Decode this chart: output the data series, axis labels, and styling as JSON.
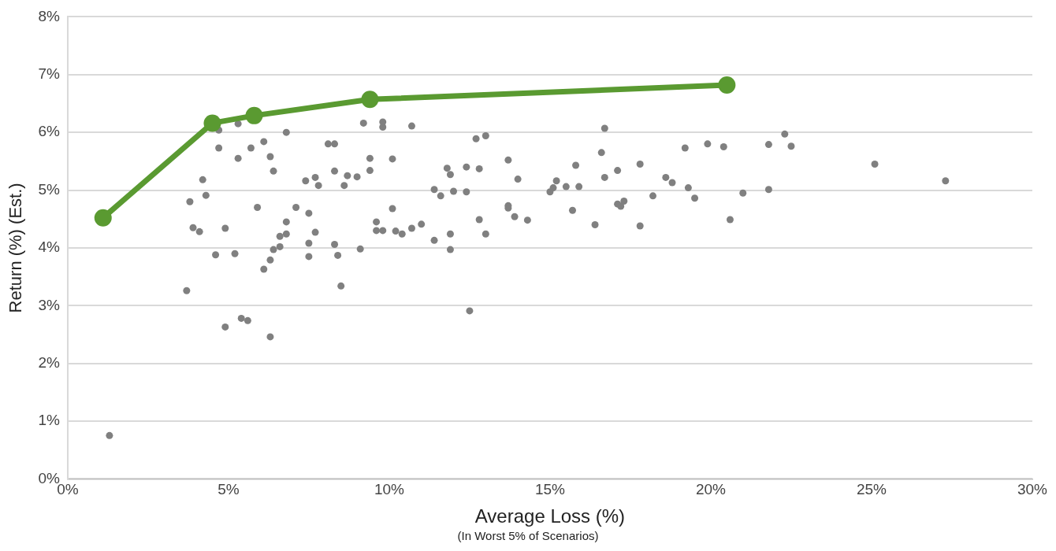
{
  "chart_data": {
    "type": "scatter",
    "xlabel": "Average Loss (%)",
    "ylabel": "Return (%) (Est.)",
    "annotations": [
      "(In Worst 5% of Scenarios)"
    ],
    "xlim": [
      0,
      30
    ],
    "ylim": [
      0,
      8
    ],
    "xticks": [
      {
        "value": 0,
        "label": "0%"
      },
      {
        "value": 5,
        "label": "5%"
      },
      {
        "value": 10,
        "label": "10%"
      },
      {
        "value": 15,
        "label": "15%"
      },
      {
        "value": 20,
        "label": "20%"
      },
      {
        "value": 25,
        "label": "25%"
      },
      {
        "value": 30,
        "label": "30%"
      }
    ],
    "yticks": [
      {
        "value": 0,
        "label": "0%"
      },
      {
        "value": 1,
        "label": "1%"
      },
      {
        "value": 2,
        "label": "2%"
      },
      {
        "value": 3,
        "label": "3%"
      },
      {
        "value": 4,
        "label": "4%"
      },
      {
        "value": 5,
        "label": "5%"
      },
      {
        "value": 6,
        "label": "6%"
      },
      {
        "value": 7,
        "label": "7%"
      },
      {
        "value": 8,
        "label": "8%"
      }
    ],
    "grid": "y",
    "marker": "circle",
    "series": [
      {
        "type": "scatter",
        "color": "#808080",
        "x": [
          1.3,
          3.7,
          3.8,
          3.9,
          4.1,
          4.2,
          4.3,
          4.6,
          4.7,
          4.7,
          4.9,
          4.9,
          5.2,
          5.3,
          5.3,
          5.4,
          5.6,
          5.7,
          5.9,
          6.1,
          6.1,
          6.3,
          6.3,
          6.3,
          6.4,
          6.4,
          6.6,
          6.6,
          6.8,
          6.8,
          6.8,
          7.1,
          7.4,
          7.5,
          7.5,
          7.5,
          7.7,
          7.8,
          7.7,
          8.1,
          8.3,
          8.3,
          8.3,
          8.4,
          8.5,
          8.6,
          8.7,
          9.0,
          9.1,
          9.2,
          9.4,
          9.4,
          9.6,
          9.6,
          9.8,
          9.8,
          9.8,
          10.1,
          10.1,
          10.2,
          10.4,
          10.7,
          10.7,
          11.0,
          11.4,
          11.4,
          11.6,
          11.8,
          11.9,
          11.9,
          11.9,
          12.0,
          12.4,
          12.4,
          12.5,
          12.7,
          12.8,
          12.8,
          13.0,
          13.0,
          13.7,
          13.7,
          13.7,
          14.0,
          13.9,
          14.3,
          15.0,
          15.1,
          15.2,
          15.5,
          15.9,
          15.8,
          15.7,
          16.4,
          16.6,
          16.7,
          16.7,
          17.1,
          17.1,
          17.3,
          17.2,
          17.8,
          17.8,
          18.2,
          18.6,
          18.8,
          19.2,
          19.3,
          19.5,
          19.9,
          20.4,
          20.6,
          21.0,
          21.8,
          21.8,
          22.3,
          22.5,
          25.1,
          27.3
        ],
        "values": [
          0.75,
          3.26,
          4.8,
          4.35,
          4.28,
          5.18,
          4.91,
          3.88,
          5.73,
          6.04,
          2.63,
          4.34,
          3.9,
          6.15,
          5.55,
          2.78,
          2.74,
          5.73,
          4.7,
          5.84,
          3.63,
          3.79,
          2.46,
          5.58,
          3.97,
          5.33,
          4.2,
          4.02,
          4.24,
          4.45,
          6.0,
          4.7,
          5.16,
          4.08,
          4.6,
          3.85,
          5.22,
          5.08,
          4.27,
          5.8,
          5.8,
          5.33,
          4.06,
          3.87,
          3.34,
          5.08,
          5.25,
          5.23,
          3.98,
          6.16,
          5.34,
          5.55,
          4.45,
          4.3,
          6.09,
          6.18,
          4.3,
          4.68,
          5.54,
          4.29,
          4.24,
          6.11,
          4.34,
          4.41,
          4.13,
          5.01,
          4.9,
          5.38,
          5.27,
          4.24,
          3.97,
          4.98,
          5.4,
          4.97,
          2.91,
          5.89,
          5.37,
          4.49,
          5.94,
          4.24,
          5.52,
          4.73,
          4.69,
          5.19,
          4.54,
          4.48,
          4.97,
          5.04,
          5.16,
          5.06,
          5.06,
          5.43,
          4.65,
          4.4,
          5.65,
          6.07,
          5.22,
          5.34,
          4.76,
          4.81,
          4.72,
          5.45,
          4.38,
          4.9,
          5.22,
          5.13,
          5.73,
          5.04,
          4.86,
          5.8,
          5.75,
          4.49,
          4.95,
          5.79,
          5.01,
          5.97,
          5.76,
          5.45,
          5.16
        ]
      },
      {
        "type": "line",
        "color": "#5a9a31",
        "x": [
          1.1,
          4.5,
          5.8,
          9.4,
          20.5
        ],
        "values": [
          4.52,
          6.16,
          6.29,
          6.57,
          6.82
        ]
      }
    ]
  }
}
